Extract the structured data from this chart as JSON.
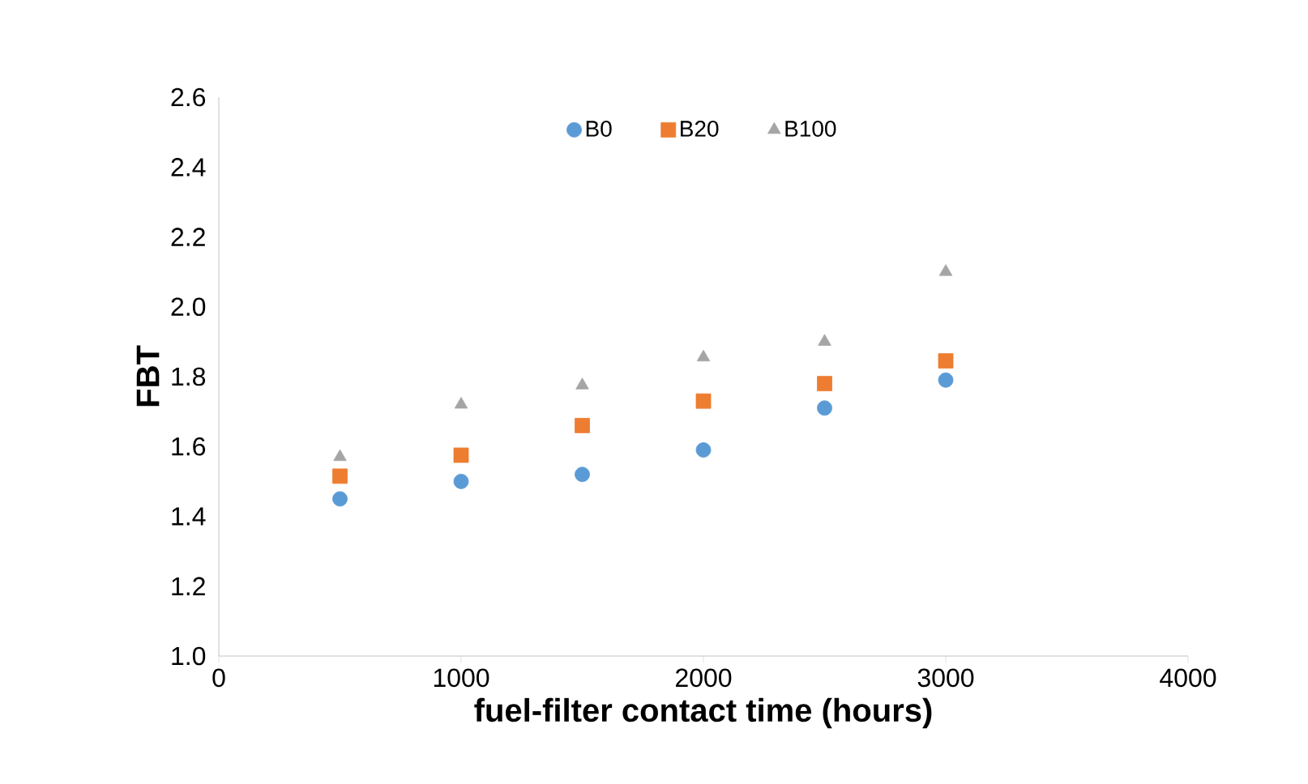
{
  "chart_data": {
    "type": "scatter",
    "xlabel": "fuel-filter contact time (hours)",
    "ylabel": "FBT",
    "x": [
      500,
      1000,
      1500,
      2000,
      2500,
      3000
    ],
    "series": [
      {
        "name": "B0",
        "color": "#5b9bd5",
        "marker": "circle",
        "values": [
          1.45,
          1.5,
          1.52,
          1.59,
          1.71,
          1.79
        ]
      },
      {
        "name": "B20",
        "color": "#ed7d31",
        "marker": "square",
        "values": [
          1.515,
          1.575,
          1.66,
          1.73,
          1.78,
          1.845
        ]
      },
      {
        "name": "B100",
        "color": "#a5a5a5",
        "marker": "triangle",
        "values": [
          1.57,
          1.72,
          1.775,
          1.855,
          1.9,
          2.1
        ]
      }
    ],
    "xlim": [
      0,
      4000
    ],
    "xticks": [
      0,
      1000,
      2000,
      3000,
      4000
    ],
    "ylim": [
      1.0,
      2.6
    ],
    "yticks": [
      {
        "value": 1.0,
        "label": "1.0"
      },
      1.2,
      1.4,
      1.6,
      1.8,
      {
        "value": 2.0,
        "label": "2.0"
      },
      2.2,
      2.4,
      2.6
    ],
    "legend": "top",
    "grid": false
  }
}
